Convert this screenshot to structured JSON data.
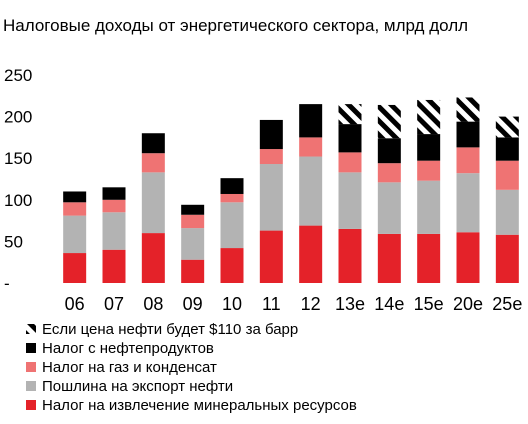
{
  "chart_data": {
    "type": "bar",
    "stacked": true,
    "title": "Налоговые доходы от энергетического сектора, млрд долл",
    "categories": [
      "06",
      "07",
      "08",
      "09",
      "10",
      "11",
      "12",
      "13e",
      "14e",
      "15e",
      "20e",
      "25e"
    ],
    "ylim": [
      0,
      250
    ],
    "yticks": [
      {
        "value": 0,
        "label": "-"
      },
      {
        "value": 50,
        "label": "50"
      },
      {
        "value": 100,
        "label": "100"
      },
      {
        "value": 150,
        "label": "150"
      },
      {
        "value": 200,
        "label": "200"
      },
      {
        "value": 250,
        "label": "250"
      }
    ],
    "grid": false,
    "legend_placement": "bottom",
    "series": [
      {
        "name": "Налог на извлечение минеральных ресурсов",
        "color": "#e42229",
        "pattern": "solid",
        "values": [
          36,
          40,
          60,
          28,
          42,
          63,
          69,
          65,
          59,
          59,
          61,
          58
        ]
      },
      {
        "name": "Пошлина на экспорт нефти",
        "color": "#b3b3b3",
        "pattern": "solid",
        "values": [
          45,
          45,
          73,
          38,
          55,
          80,
          83,
          68,
          62,
          64,
          71,
          54
        ]
      },
      {
        "name": "Налог на газ и конденсат",
        "color": "#ef7373",
        "pattern": "solid",
        "values": [
          16,
          15,
          23,
          16,
          10,
          18,
          23,
          24,
          23,
          24,
          31,
          35
        ]
      },
      {
        "name": "Налог с нефтепродуктов",
        "color": "#000000",
        "pattern": "solid",
        "values": [
          13,
          15,
          24,
          12,
          19,
          35,
          40,
          34,
          30,
          32,
          31,
          28
        ]
      },
      {
        "name": "Если цена нефти будет $110 за барр",
        "color": "#000000",
        "pattern": "hatch",
        "values": [
          0,
          0,
          0,
          0,
          0,
          0,
          0,
          24,
          40,
          41,
          29,
          25
        ]
      }
    ]
  }
}
